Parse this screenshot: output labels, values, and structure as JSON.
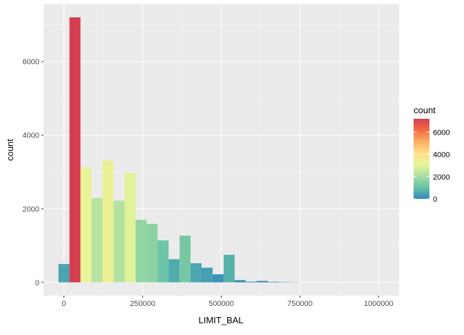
{
  "chart_data": {
    "type": "bar",
    "subtype": "histogram",
    "title": "",
    "xlabel": "LIMIT_BAL",
    "ylabel": "count",
    "xlim": [
      -65000,
      1065000
    ],
    "ylim": [
      -360,
      7560
    ],
    "x_ticks": [
      0,
      250000,
      500000,
      750000,
      1000000
    ],
    "x_tick_labels": [
      "0",
      "250000",
      "500000",
      "750000",
      "1000000"
    ],
    "y_ticks": [
      0,
      2000,
      4000,
      6000
    ],
    "y_tick_labels": [
      "0",
      "2000",
      "4000",
      "6000"
    ],
    "grid": true,
    "legend_placement": "right",
    "bin_width": 35000,
    "bins": [
      {
        "x_start": -17500,
        "x_end": 17500,
        "count": 500
      },
      {
        "x_start": 17500,
        "x_end": 52500,
        "count": 7200
      },
      {
        "x_start": 52500,
        "x_end": 87500,
        "count": 3120
      },
      {
        "x_start": 87500,
        "x_end": 122500,
        "count": 2290
      },
      {
        "x_start": 122500,
        "x_end": 157500,
        "count": 3310
      },
      {
        "x_start": 157500,
        "x_end": 192500,
        "count": 2220
      },
      {
        "x_start": 192500,
        "x_end": 227500,
        "count": 2980
      },
      {
        "x_start": 227500,
        "x_end": 262500,
        "count": 1700
      },
      {
        "x_start": 262500,
        "x_end": 297500,
        "count": 1590
      },
      {
        "x_start": 297500,
        "x_end": 332500,
        "count": 1140
      },
      {
        "x_start": 332500,
        "x_end": 367500,
        "count": 630
      },
      {
        "x_start": 367500,
        "x_end": 402500,
        "count": 1270
      },
      {
        "x_start": 402500,
        "x_end": 437500,
        "count": 520
      },
      {
        "x_start": 437500,
        "x_end": 472500,
        "count": 400
      },
      {
        "x_start": 472500,
        "x_end": 507500,
        "count": 220
      },
      {
        "x_start": 507500,
        "x_end": 542500,
        "count": 750
      },
      {
        "x_start": 542500,
        "x_end": 577500,
        "count": 60
      },
      {
        "x_start": 577500,
        "x_end": 612500,
        "count": 20
      },
      {
        "x_start": 612500,
        "x_end": 647500,
        "count": 40
      },
      {
        "x_start": 647500,
        "x_end": 682500,
        "count": 15
      },
      {
        "x_start": 682500,
        "x_end": 717500,
        "count": 10
      },
      {
        "x_start": 717500,
        "x_end": 752500,
        "count": 5
      }
    ],
    "legend": {
      "title": "count",
      "min": 0,
      "max": 7200,
      "breaks": [
        0,
        2000,
        4000,
        6000
      ],
      "break_labels": [
        "0",
        "2000",
        "4000",
        "6000"
      ]
    },
    "colors": {
      "panel_background": "#ebebeb",
      "grid_major": "#ffffff",
      "grid_minor": "#f4f4f4",
      "palette_spectral": [
        "#3288bd",
        "#66c2a5",
        "#abdda4",
        "#e6f598",
        "#fee08b",
        "#fdae61",
        "#f46d43",
        "#d53e4f"
      ]
    }
  }
}
